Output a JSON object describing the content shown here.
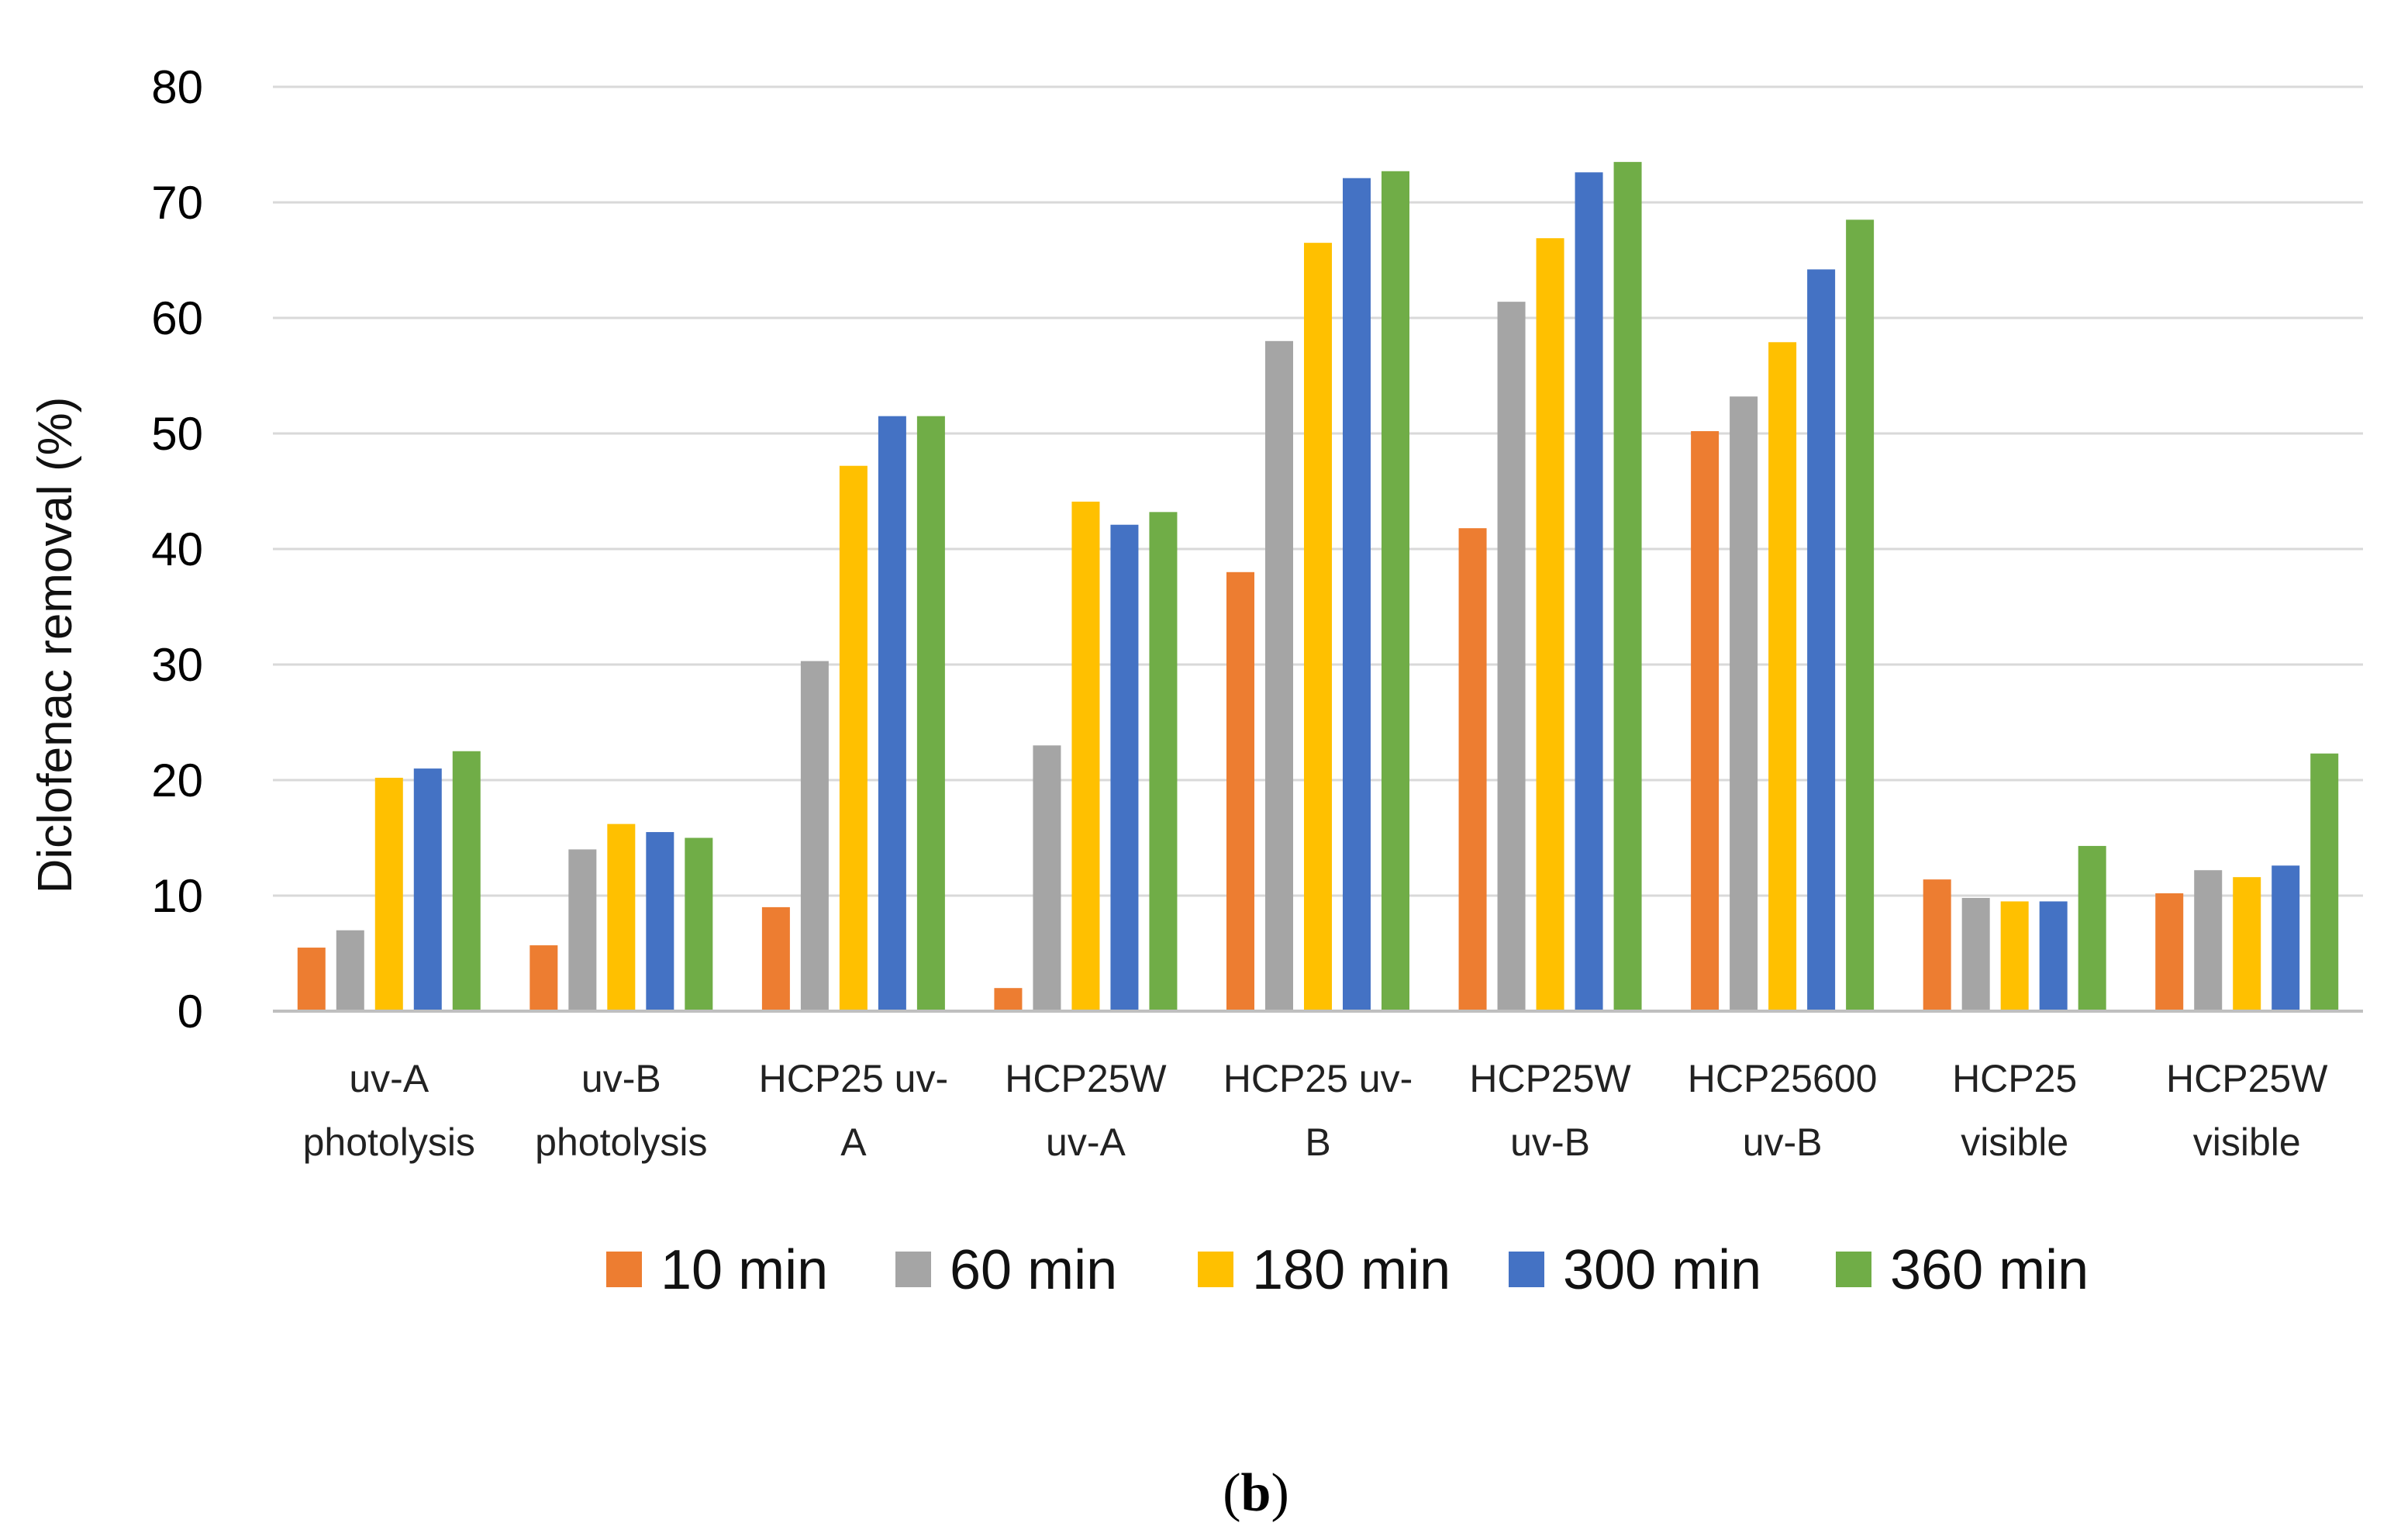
{
  "chart_data": {
    "type": "bar",
    "title": "",
    "xlabel": "",
    "ylabel": "Diclofenac removal (%)",
    "ylim": [
      0,
      80
    ],
    "yticks": [
      0,
      10,
      20,
      30,
      40,
      50,
      60,
      70,
      80
    ],
    "grid": true,
    "legend_position": "bottom",
    "categories": [
      [
        "uv-A",
        "photolysis"
      ],
      [
        "uv-B",
        "photolysis"
      ],
      [
        "HCP25 uv-",
        "A"
      ],
      [
        "HCP25W",
        "uv-A"
      ],
      [
        "HCP25 uv-",
        "B"
      ],
      [
        "HCP25W",
        "uv-B"
      ],
      [
        "HCP25600",
        "uv-B"
      ],
      [
        "HCP25",
        "visible"
      ],
      [
        "HCP25W",
        "visible"
      ]
    ],
    "series": [
      {
        "name": "10 min",
        "color": "#ED7D31",
        "values": [
          5.5,
          5.7,
          9.0,
          2.0,
          38.0,
          41.8,
          50.2,
          11.4,
          10.2
        ]
      },
      {
        "name": "60 min",
        "color": "#A5A5A5",
        "values": [
          7.0,
          14.0,
          30.3,
          23.0,
          58.0,
          61.4,
          53.2,
          9.8,
          12.2
        ]
      },
      {
        "name": "180 min",
        "color": "#FFC000",
        "values": [
          20.2,
          16.2,
          47.2,
          44.1,
          66.5,
          66.9,
          57.9,
          9.5,
          11.6
        ]
      },
      {
        "name": "300 min",
        "color": "#4472C4",
        "values": [
          21.0,
          15.5,
          51.5,
          42.1,
          72.1,
          72.6,
          64.2,
          9.5,
          12.6
        ]
      },
      {
        "name": "360 min",
        "color": "#70AD47",
        "values": [
          22.5,
          15.0,
          51.5,
          43.2,
          72.7,
          73.5,
          68.5,
          14.3,
          22.3
        ]
      }
    ]
  },
  "caption": {
    "open": "(",
    "letter": "b",
    "close": ")"
  },
  "colors": {
    "grid": "#D9D9D9",
    "axis": "#BFBFBF"
  }
}
